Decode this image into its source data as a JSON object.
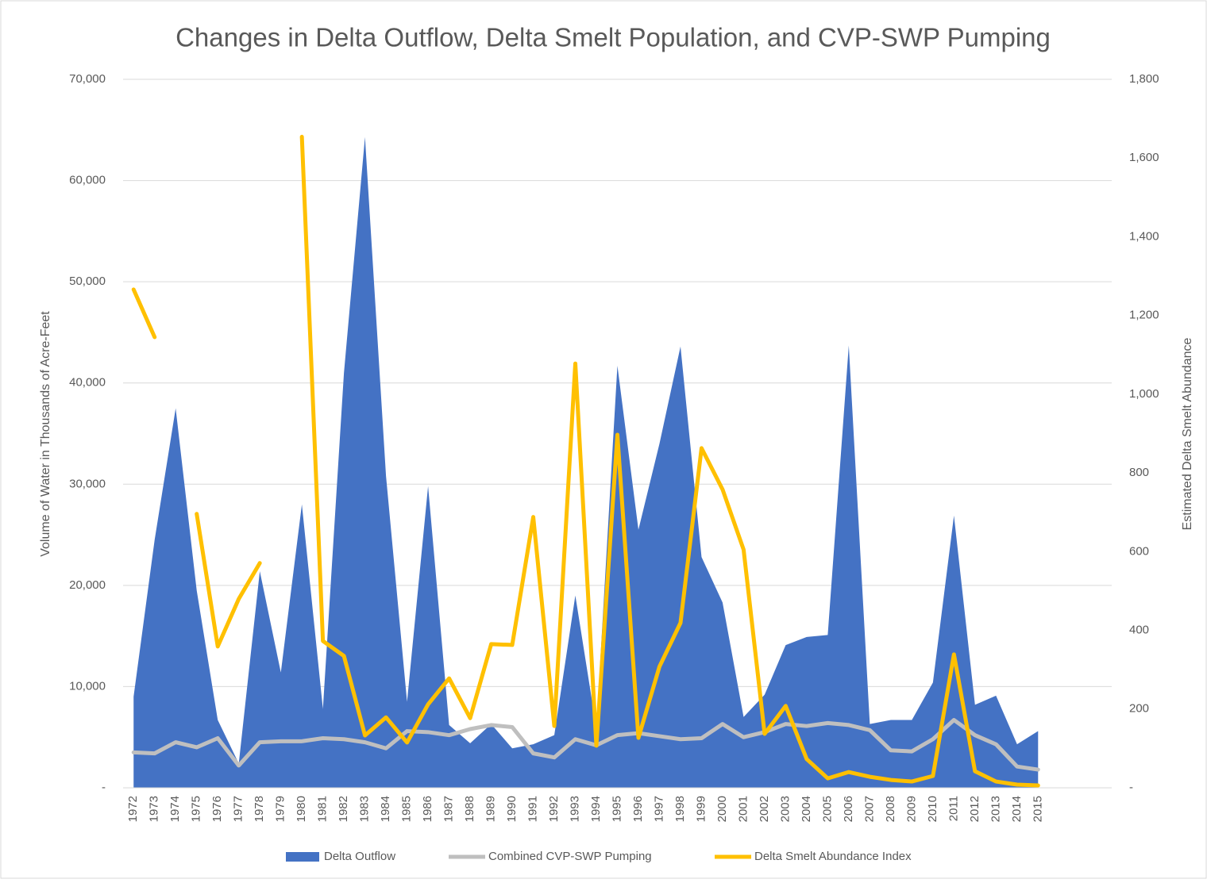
{
  "chart_data": {
    "type": "combo",
    "title": "Changes in Delta Outflow, Delta Smelt Population, and CVP-SWP Pumping",
    "ylabel": "Volume of Water in Thousands of Acre-Feet",
    "y2label": "Estimated Delta Smelt Abundance",
    "categories": [
      "1972",
      "1973",
      "1974",
      "1975",
      "1976",
      "1977",
      "1978",
      "1979",
      "1980",
      "1981",
      "1982",
      "1983",
      "1984",
      "1985",
      "1986",
      "1987",
      "1988",
      "1989",
      "1990",
      "1991",
      "1992",
      "1993",
      "1994",
      "1995",
      "1996",
      "1997",
      "1998",
      "1999",
      "2000",
      "2001",
      "2002",
      "2003",
      "2004",
      "2005",
      "2006",
      "2007",
      "2008",
      "2009",
      "2010",
      "2011",
      "2012",
      "2013",
      "2014",
      "2015",
      null,
      null,
      null
    ],
    "ylim": [
      0,
      70000
    ],
    "yticks": [
      {
        "value": 0,
        "label": "-"
      },
      {
        "value": 10000,
        "label": "10,000"
      },
      {
        "value": 20000,
        "label": "20,000"
      },
      {
        "value": 30000,
        "label": "30,000"
      },
      {
        "value": 40000,
        "label": "40,000"
      },
      {
        "value": 50000,
        "label": "50,000"
      },
      {
        "value": 60000,
        "label": "60,000"
      },
      {
        "value": 70000,
        "label": "70,000"
      }
    ],
    "y2lim": [
      0,
      1800
    ],
    "y2ticks": [
      {
        "value": 0,
        "label": "-"
      },
      200,
      400,
      600,
      800,
      {
        "value": 1000,
        "label": "1,000"
      },
      {
        "value": 1200,
        "label": "1,200"
      },
      {
        "value": 1400,
        "label": "1,400"
      },
      {
        "value": 1600,
        "label": "1,600"
      },
      {
        "value": 1800,
        "label": "1,800"
      }
    ],
    "grid": true,
    "legend": "bottom",
    "series": [
      {
        "name": "Delta Outflow",
        "type": "area",
        "color": "#4472c4",
        "values": [
          9000,
          24500,
          37500,
          19500,
          6700,
          2400,
          21400,
          11400,
          28000,
          7800,
          41000,
          64300,
          30800,
          8500,
          29800,
          6200,
          4400,
          6300,
          3900,
          4300,
          5200,
          19000,
          5900,
          41700,
          25500,
          34000,
          43600,
          22800,
          18300,
          7000,
          9200,
          14100,
          14900,
          15100,
          43700,
          6300,
          6700,
          6700,
          10400,
          26900,
          8200,
          9100,
          4300,
          5600,
          null,
          null,
          null
        ]
      },
      {
        "name": "Combined CVP-SWP Pumping",
        "type": "line",
        "color": "#bfbfbf",
        "values": [
          3500,
          3400,
          4500,
          4000,
          4900,
          2200,
          4500,
          4600,
          4600,
          4900,
          4800,
          4500,
          3900,
          5600,
          5500,
          5200,
          5800,
          6200,
          6000,
          3400,
          3000,
          4800,
          4200,
          5200,
          5400,
          5100,
          4800,
          4900,
          6300,
          5000,
          5500,
          6300,
          6100,
          6400,
          6200,
          5700,
          3700,
          3600,
          4800,
          6700,
          5200,
          4300,
          2100,
          1800,
          null,
          null,
          null
        ]
      },
      {
        "name": "Delta Smelt Abundance Index",
        "type": "line",
        "axis": "y2",
        "color": "#ffc000",
        "values": [
          1266,
          1145,
          null,
          696,
          359,
          480,
          571,
          null,
          1654,
          373,
          335,
          133,
          179,
          115,
          212,
          278,
          177,
          365,
          363,
          688,
          157,
          1078,
          107,
          897,
          127,
          308,
          419,
          863,
          758,
          605,
          137,
          208,
          73,
          24,
          40,
          28,
          20,
          16,
          30,
          339,
          42,
          16,
          8,
          6,
          null,
          null,
          null
        ]
      }
    ]
  }
}
